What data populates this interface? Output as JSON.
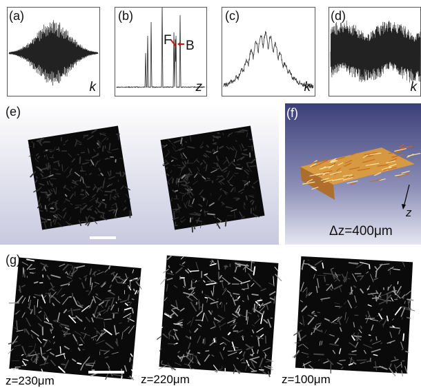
{
  "panels": {
    "a": {
      "label": "(a)",
      "axis": "k"
    },
    "b": {
      "label": "(b)",
      "axis": "z",
      "peak_f": "F",
      "peak_b": "B"
    },
    "c": {
      "label": "(c)",
      "axis": "k"
    },
    "d": {
      "label": "(d)",
      "axis": "k"
    },
    "e": {
      "label": "(e)"
    },
    "f": {
      "label": "(f)",
      "axis": "z",
      "caption": "Δz=400μm"
    },
    "g": {
      "label": "(g)",
      "captions": [
        "z=230μm",
        "z=220μm",
        "z=100μm"
      ]
    }
  },
  "colors": {
    "signal": "#222222",
    "arrow": "#d01010",
    "volume": "#e8a030",
    "gradient_top": "#3a3f78",
    "gradient_bottom": "#e6e7f2"
  }
}
